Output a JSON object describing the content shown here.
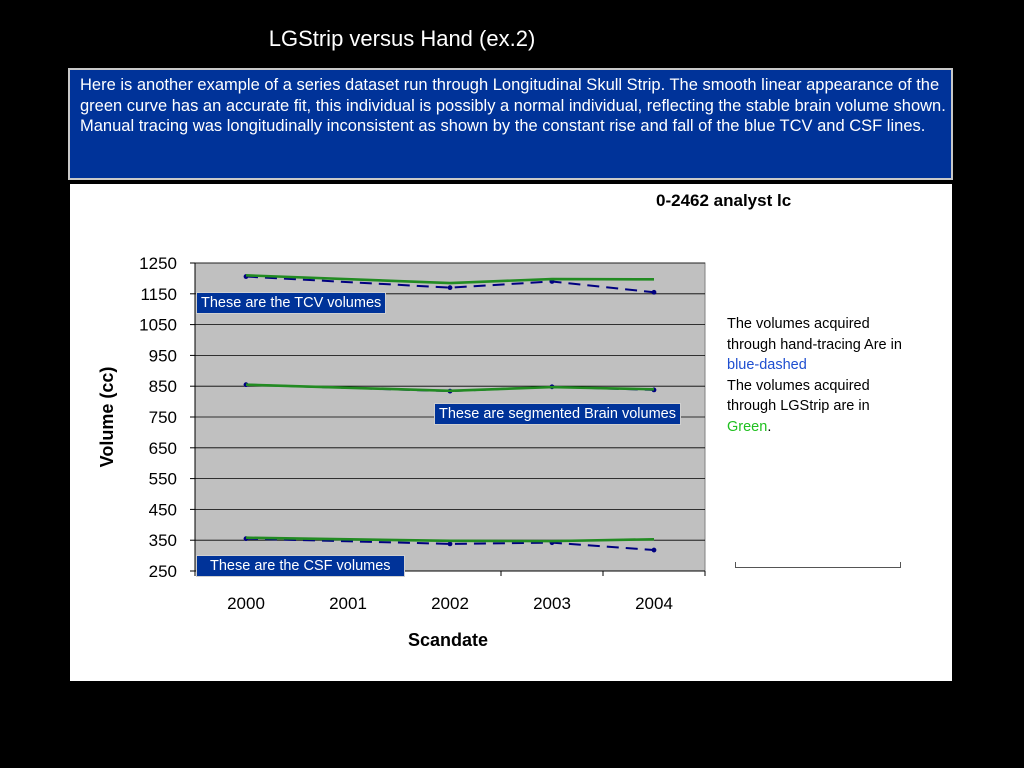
{
  "slide": {
    "title": "LGStrip versus Hand (ex.2)",
    "description": "Here is another example of a series dataset run through Longitudinal Skull Strip. The smooth linear appearance of the green curve has an accurate fit, this individual is possibly a normal individual, reflecting the stable brain volume shown. Manual tracing was longitudinally inconsistent as shown by the constant rise and fall of the blue TCV and CSF lines."
  },
  "callouts": {
    "tcv": "These are the TCV volumes",
    "brain": "These are segmented Brain volumes",
    "csf": "These are the CSF volumes"
  },
  "side_note": {
    "line1": "The volumes acquired through hand-tracing Are in ",
    "blue_word": "blue-dashed",
    "line2": "The volumes acquired through LGStrip are in ",
    "green_word": "Green",
    "period": "."
  },
  "colors": {
    "hand": "#000080",
    "lgstrip": "#228B22",
    "plot_bg": "#C0C0C0",
    "callout_bg": "#003399"
  },
  "chart_data": {
    "type": "line",
    "title": "0-2462 analyst lc",
    "xlabel": "Scandate",
    "ylabel": "Volume (cc)",
    "x": [
      2000,
      2001,
      2002,
      2003,
      2004
    ],
    "yticks": [
      250,
      350,
      450,
      550,
      650,
      750,
      850,
      950,
      1050,
      1150,
      1250
    ],
    "ylim": [
      250,
      1250
    ],
    "grid": true,
    "series": [
      {
        "group": "TCV",
        "method": "hand",
        "style": "blue-dashed",
        "points": [
          [
            2000,
            1206
          ],
          [
            2002,
            1170
          ],
          [
            2003,
            1190
          ],
          [
            2004,
            1155
          ]
        ]
      },
      {
        "group": "TCV",
        "method": "lgstrip",
        "style": "green",
        "points": [
          [
            2000,
            1210
          ],
          [
            2002,
            1185
          ],
          [
            2003,
            1198
          ],
          [
            2004,
            1197
          ]
        ]
      },
      {
        "group": "Brain",
        "method": "hand",
        "style": "blue-dashed",
        "points": [
          [
            2000,
            855
          ],
          [
            2002,
            834
          ],
          [
            2003,
            848
          ],
          [
            2004,
            838
          ]
        ]
      },
      {
        "group": "Brain",
        "method": "lgstrip",
        "style": "green",
        "points": [
          [
            2000,
            855
          ],
          [
            2002,
            835
          ],
          [
            2003,
            847
          ],
          [
            2004,
            840
          ]
        ]
      },
      {
        "group": "CSF",
        "method": "hand",
        "style": "blue-dashed",
        "points": [
          [
            2000,
            355
          ],
          [
            2002,
            338
          ],
          [
            2003,
            342
          ],
          [
            2004,
            318
          ]
        ]
      },
      {
        "group": "CSF",
        "method": "lgstrip",
        "style": "green",
        "points": [
          [
            2000,
            358
          ],
          [
            2002,
            348
          ],
          [
            2003,
            347
          ],
          [
            2004,
            353
          ]
        ]
      }
    ]
  }
}
